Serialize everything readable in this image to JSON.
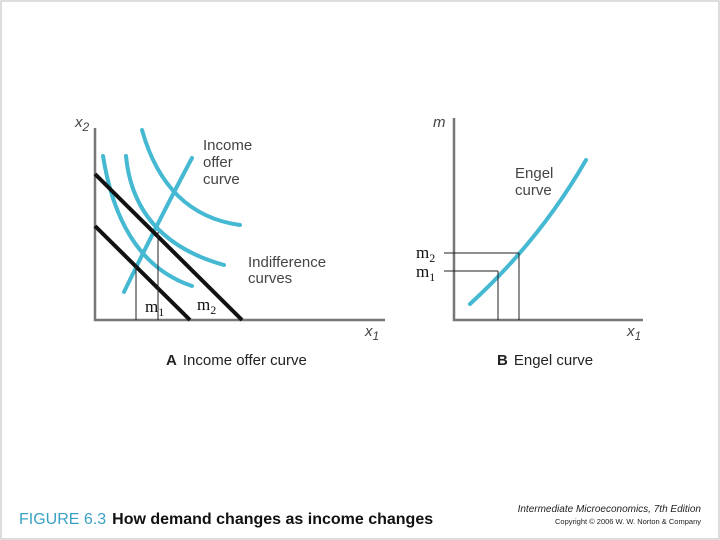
{
  "panel_a": {
    "y_axis_var": "x",
    "y_axis_sub": "2",
    "x_axis_var": "x",
    "x_axis_sub": "1",
    "income_offer_label": [
      "Income",
      "offer",
      "curve"
    ],
    "indifference_label": [
      "Indifference",
      "curves"
    ],
    "budget_label_1_base": "m",
    "budget_label_1_sub": "1",
    "budget_label_2_base": "m",
    "budget_label_2_sub": "2",
    "caption_letter": "A",
    "caption_text": "Income offer curve"
  },
  "panel_b": {
    "y_axis_var": "m",
    "x_axis_var": "x",
    "x_axis_sub": "1",
    "engel_label": [
      "Engel",
      "curve"
    ],
    "m2_base": "m",
    "m2_sub": "2",
    "m1_base": "m",
    "m1_sub": "1",
    "caption_letter": "B",
    "caption_text": "Engel curve"
  },
  "footer": {
    "figure_number": "FIGURE 6.3",
    "figure_title": "How demand changes as income changes",
    "book": "Intermediate Microeconomics, 7th Edition",
    "copyright": "Copyright © 2006 W. W. Norton & Company"
  },
  "colors": {
    "curve": "#45b8d2",
    "budget": "#111111",
    "axis": "#777777",
    "figure_number": "#3aa0c4"
  }
}
